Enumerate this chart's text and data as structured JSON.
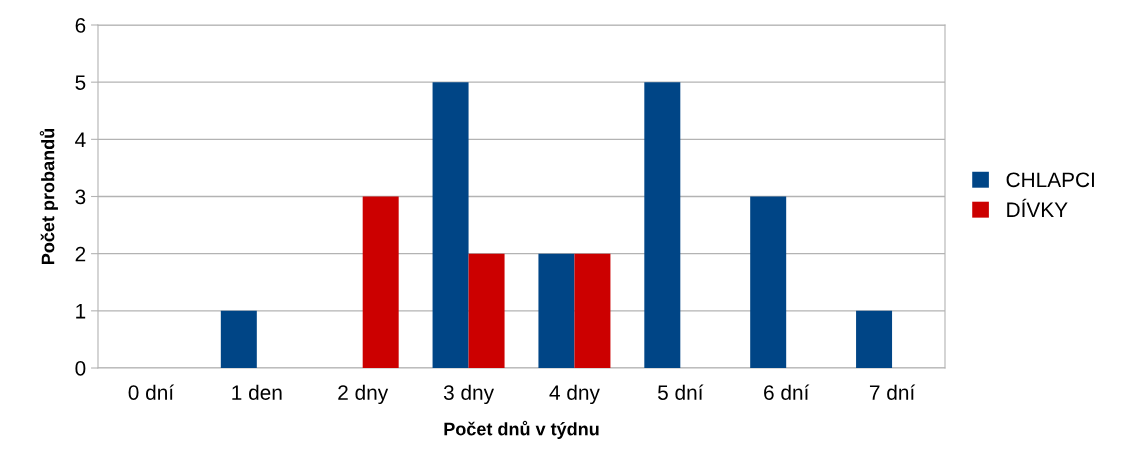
{
  "chart_data": {
    "type": "bar",
    "xlabel": "Počet dnů v týdnu",
    "ylabel": "Počet probandů",
    "categories": [
      "0 dní",
      "1 den",
      "2 dny",
      "3 dny",
      "4 dny",
      "5 dní",
      "6 dní",
      "7 dní"
    ],
    "series": [
      {
        "name": "CHLAPCI",
        "color": "#004586",
        "values": [
          0,
          1,
          0,
          5,
          2,
          5,
          3,
          1
        ]
      },
      {
        "name": "DÍVKY",
        "color": "#cc0000",
        "values": [
          0,
          0,
          3,
          2,
          2,
          0,
          0,
          0
        ]
      }
    ],
    "ylim": [
      0,
      6
    ],
    "yticks": [
      0,
      1,
      2,
      3,
      4,
      5,
      6
    ],
    "grid": "y",
    "legend": "right"
  }
}
